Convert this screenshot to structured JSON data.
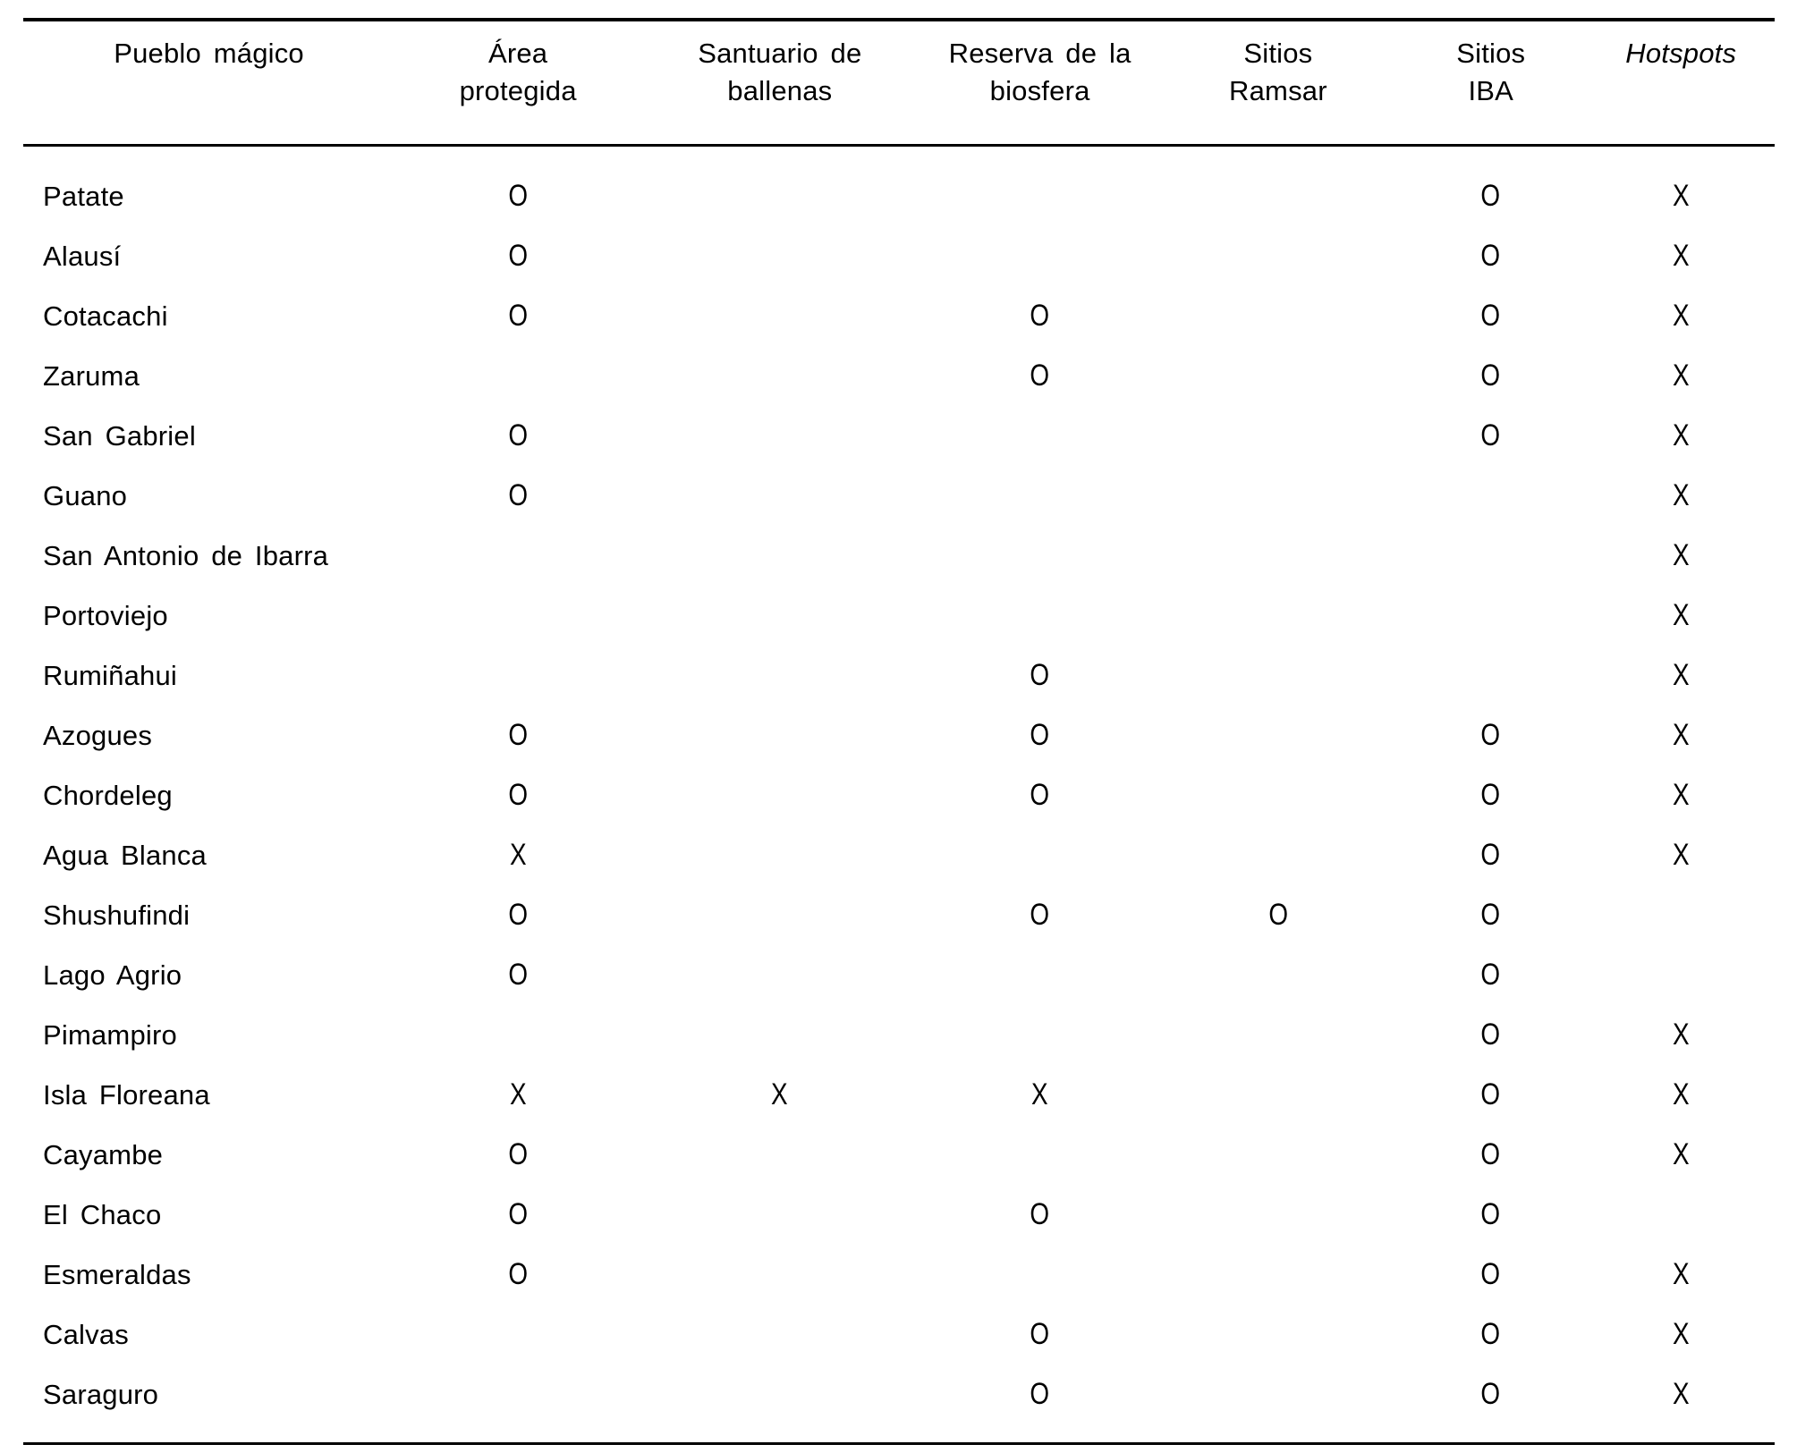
{
  "table": {
    "columns": [
      {
        "line1": "Pueblo mágico",
        "line2": ""
      },
      {
        "line1": "Área",
        "line2": "protegida"
      },
      {
        "line1": "Santuario de",
        "line2": "ballenas"
      },
      {
        "line1": "Reserva de la",
        "line2": "biosfera"
      },
      {
        "line1": "Sitios",
        "line2": "Ramsar"
      },
      {
        "line1": "Sitios",
        "line2": "IBA"
      },
      {
        "line1": "Hotspots",
        "line2": ""
      }
    ],
    "marks": {
      "presence": "O",
      "cross": "X"
    },
    "rows": [
      {
        "name": "Patate",
        "marks": [
          "O",
          "",
          "",
          "",
          "O",
          "X"
        ]
      },
      {
        "name": "Alausí",
        "marks": [
          "O",
          "",
          "",
          "",
          "O",
          "X"
        ]
      },
      {
        "name": "Cotacachi",
        "marks": [
          "O",
          "",
          "O",
          "",
          "O",
          "X"
        ]
      },
      {
        "name": "Zaruma",
        "marks": [
          "",
          "",
          "O",
          "",
          "O",
          "X"
        ]
      },
      {
        "name": "San Gabriel",
        "marks": [
          "O",
          "",
          "",
          "",
          "O",
          "X"
        ]
      },
      {
        "name": "Guano",
        "marks": [
          "O",
          "",
          "",
          "",
          "",
          "X"
        ]
      },
      {
        "name": "San Antonio de Ibarra",
        "marks": [
          "",
          "",
          "",
          "",
          "",
          "X"
        ]
      },
      {
        "name": "Portoviejo",
        "marks": [
          "",
          "",
          "",
          "",
          "",
          "X"
        ]
      },
      {
        "name": "Rumiñahui",
        "marks": [
          "",
          "",
          "O",
          "",
          "",
          "X"
        ]
      },
      {
        "name": "Azogues",
        "marks": [
          "O",
          "",
          "O",
          "",
          "O",
          "X"
        ]
      },
      {
        "name": "Chordeleg",
        "marks": [
          "O",
          "",
          "O",
          "",
          "O",
          "X"
        ]
      },
      {
        "name": "Agua Blanca",
        "marks": [
          "X",
          "",
          "",
          "",
          "O",
          "X"
        ]
      },
      {
        "name": "Shushufindi",
        "marks": [
          "O",
          "",
          "O",
          "O",
          "O",
          ""
        ]
      },
      {
        "name": "Lago Agrio",
        "marks": [
          "O",
          "",
          "",
          "",
          "O",
          ""
        ]
      },
      {
        "name": "Pimampiro",
        "marks": [
          "",
          "",
          "",
          "",
          "O",
          "X"
        ]
      },
      {
        "name": "Isla Floreana",
        "marks": [
          "X",
          "X",
          "X",
          "",
          "O",
          "X"
        ]
      },
      {
        "name": "Cayambe",
        "marks": [
          "O",
          "",
          "",
          "",
          "O",
          "X"
        ]
      },
      {
        "name": "El Chaco",
        "marks": [
          "O",
          "",
          "O",
          "",
          "O",
          ""
        ]
      },
      {
        "name": "Esmeraldas",
        "marks": [
          "O",
          "",
          "",
          "",
          "O",
          "X"
        ]
      },
      {
        "name": "Calvas",
        "marks": [
          "",
          "",
          "O",
          "",
          "O",
          "X"
        ]
      },
      {
        "name": "Saraguro",
        "marks": [
          "",
          "",
          "O",
          "",
          "O",
          "X"
        ]
      }
    ]
  }
}
